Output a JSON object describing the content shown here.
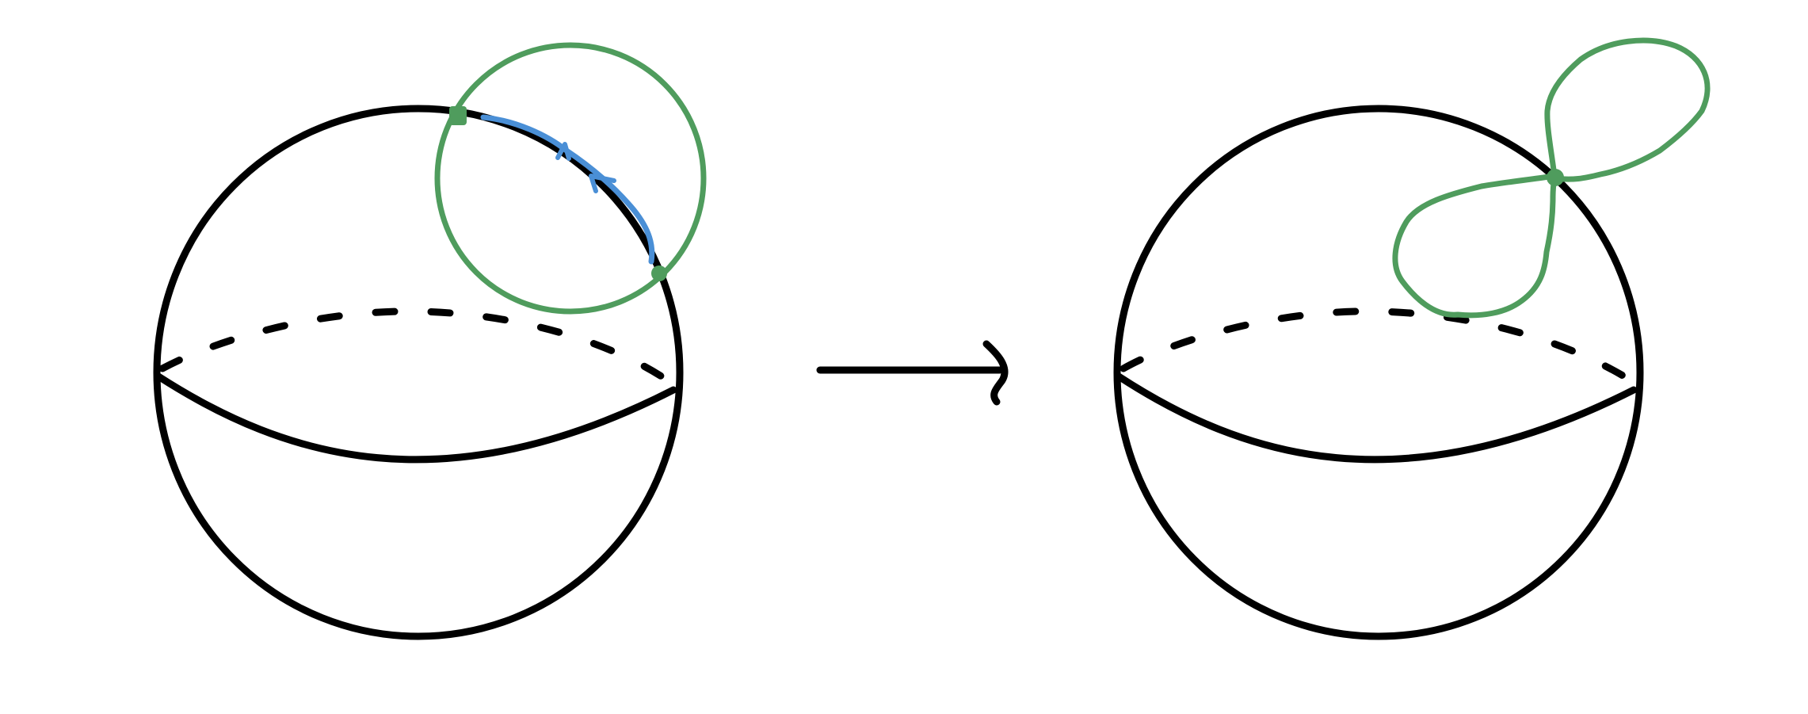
{
  "diagram": {
    "description_type": "topology-sketch",
    "colors": {
      "ink": "#000000",
      "loop": "#4f9c5d",
      "arc": "#4a8fd6",
      "background": "#ffffff"
    },
    "icons": {
      "arrow": "right-arrow-icon"
    }
  }
}
